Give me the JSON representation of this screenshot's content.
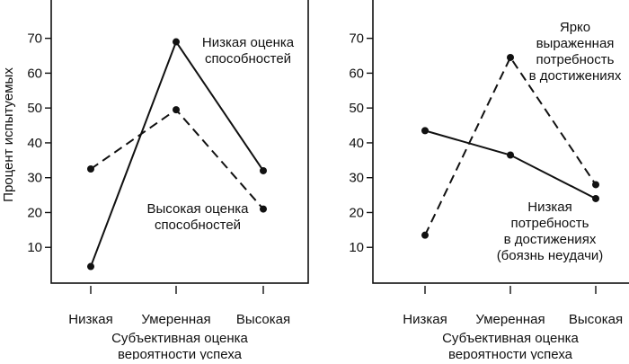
{
  "chart_data": [
    {
      "type": "line",
      "xlabel": [
        "Субъективная оценка",
        "вероятности успеха"
      ],
      "ylabel": "Процент испытуемых",
      "categories": [
        "Низкая",
        "Умеренная",
        "Высокая"
      ],
      "yticks": [
        10,
        20,
        30,
        40,
        50,
        60,
        70
      ],
      "ylim": [
        0,
        81
      ],
      "grid": false,
      "series": [
        {
          "style": "solid",
          "values": [
            4.5,
            69,
            32
          ],
          "annotation": [
            "Низкая оценка",
            "способностей"
          ]
        },
        {
          "style": "dashed",
          "values": [
            32.5,
            49.5,
            21
          ],
          "annotation": [
            "Высокая оценка",
            "способностей"
          ]
        }
      ]
    },
    {
      "type": "line",
      "xlabel": [
        "Субъективная оценка",
        "вероятности успеха"
      ],
      "ylabel": "",
      "categories": [
        "Низкая",
        "Умеренная",
        "Высокая"
      ],
      "yticks": [
        10,
        20,
        30,
        40,
        50,
        60,
        70
      ],
      "ylim": [
        0,
        81
      ],
      "grid": false,
      "series": [
        {
          "style": "solid",
          "values": [
            43.5,
            36.5,
            24
          ],
          "annotation": [
            "Низкая",
            "потребность",
            "в достижениях",
            "(боязнь неудачи)"
          ]
        },
        {
          "style": "dashed",
          "values": [
            13.5,
            64.5,
            28
          ],
          "annotation": [
            "Ярко",
            "выраженная",
            "потребность",
            "в достижениях"
          ]
        }
      ]
    }
  ]
}
